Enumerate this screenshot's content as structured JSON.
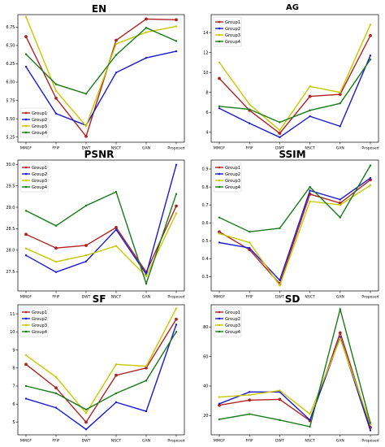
{
  "chart_data": [
    {
      "type": "line",
      "title": "EN",
      "categories": [
        "MMGF",
        "FFIF",
        "DWT",
        "NSCT",
        "GAN",
        "Proposed"
      ],
      "ylim": [
        5.18,
        6.92
      ],
      "yticks": [
        5.25,
        5.5,
        5.75,
        6.0,
        6.25,
        6.5,
        6.75
      ],
      "tick_labels": [
        "5.25",
        "5.50",
        "5.75",
        "6.00",
        "6.25",
        "6.50",
        "6.75"
      ],
      "legend_position": "lower-left",
      "series": [
        {
          "name": "Group1",
          "color": "#b22222",
          "values": [
            6.62,
            5.78,
            5.26,
            6.57,
            6.86,
            6.85
          ]
        },
        {
          "name": "Group2",
          "color": "#1a1ad6",
          "values": [
            6.21,
            5.57,
            5.41,
            6.13,
            6.33,
            6.42
          ]
        },
        {
          "name": "Group3",
          "color": "#c8c800",
          "values": [
            6.89,
            5.88,
            5.4,
            6.52,
            6.68,
            6.76
          ]
        },
        {
          "name": "Group4",
          "color": "#1a7a1a",
          "values": [
            6.38,
            5.97,
            5.84,
            6.37,
            6.74,
            6.56
          ]
        }
      ]
    },
    {
      "type": "line",
      "title": "AG",
      "categories": [
        "MMGF",
        "FFIF",
        "DWT",
        "NSCT",
        "GAN",
        "Proposed"
      ],
      "ylim": [
        3.0,
        15.8
      ],
      "yticks": [
        4,
        6,
        8,
        10,
        12,
        14
      ],
      "tick_labels": [
        "4",
        "6",
        "8",
        "10",
        "12",
        "14"
      ],
      "legend_position": "top-left",
      "series": [
        {
          "name": "Group1",
          "color": "#b22222",
          "values": [
            9.4,
            6.2,
            3.9,
            7.6,
            7.8,
            13.7
          ]
        },
        {
          "name": "Group2",
          "color": "#1a1ad6",
          "values": [
            6.4,
            4.9,
            3.5,
            5.6,
            4.6,
            11.7
          ]
        },
        {
          "name": "Group3",
          "color": "#c8c800",
          "values": [
            11.0,
            6.8,
            4.2,
            8.6,
            8.0,
            14.8
          ]
        },
        {
          "name": "Group4",
          "color": "#1a7a1a",
          "values": [
            6.6,
            6.3,
            5.0,
            6.2,
            6.9,
            11.3
          ]
        }
      ]
    },
    {
      "type": "line",
      "title": "PSNR",
      "categories": [
        "MMGF",
        "FFIF",
        "DWT",
        "NSCT",
        "GAN",
        "Proposed"
      ],
      "ylim": [
        27.05,
        30.1
      ],
      "yticks": [
        27.5,
        28.0,
        28.5,
        29.0,
        29.5,
        30.0
      ],
      "tick_labels": [
        "27.5",
        "28.0",
        "28.5",
        "29.0",
        "29.5",
        "30.0"
      ],
      "legend_position": "top-left",
      "series": [
        {
          "name": "Group1",
          "color": "#b22222",
          "values": [
            28.37,
            28.05,
            28.11,
            28.53,
            27.49,
            29.03
          ]
        },
        {
          "name": "Group2",
          "color": "#1a1ad6",
          "values": [
            27.88,
            27.49,
            27.74,
            28.48,
            27.44,
            29.99
          ]
        },
        {
          "name": "Group3",
          "color": "#c8c800",
          "values": [
            28.04,
            27.73,
            27.88,
            28.1,
            27.39,
            28.86
          ]
        },
        {
          "name": "Group4",
          "color": "#1a7a1a",
          "values": [
            28.92,
            28.57,
            29.04,
            29.36,
            27.22,
            29.31
          ]
        }
      ]
    },
    {
      "type": "line",
      "title": "SSIM",
      "categories": [
        "MMGF",
        "FFIF",
        "DWT",
        "NSCT",
        "GAN",
        "Proposed"
      ],
      "ylim": [
        0.22,
        0.95
      ],
      "yticks": [
        0.3,
        0.4,
        0.5,
        0.6,
        0.7,
        0.8,
        0.9
      ],
      "tick_labels": [
        "0.3",
        "0.4",
        "0.5",
        "0.6",
        "0.7",
        "0.8",
        "0.9"
      ],
      "legend_position": "top-left",
      "series": [
        {
          "name": "Group1",
          "color": "#b22222",
          "values": [
            0.55,
            0.45,
            0.26,
            0.76,
            0.71,
            0.84
          ]
        },
        {
          "name": "Group2",
          "color": "#1a1ad6",
          "values": [
            0.49,
            0.46,
            0.28,
            0.78,
            0.73,
            0.85
          ]
        },
        {
          "name": "Group3",
          "color": "#c8c800",
          "values": [
            0.54,
            0.49,
            0.25,
            0.72,
            0.7,
            0.81
          ]
        },
        {
          "name": "Group4",
          "color": "#1a7a1a",
          "values": [
            0.63,
            0.55,
            0.57,
            0.8,
            0.63,
            0.92
          ]
        }
      ]
    },
    {
      "type": "line",
      "title": "SF",
      "categories": [
        "MMGF",
        "FFIF",
        "DWT",
        "NSCT",
        "GAN",
        "Proposed"
      ],
      "ylim": [
        4.3,
        11.5
      ],
      "yticks": [
        5,
        6,
        7,
        8,
        9,
        10,
        11
      ],
      "tick_labels": [
        "5",
        "6",
        "7",
        "8",
        "9",
        "10",
        "11"
      ],
      "legend_position": "top-left",
      "series": [
        {
          "name": "Group1",
          "color": "#b22222",
          "values": [
            8.2,
            6.9,
            5.0,
            7.6,
            8.0,
            10.7
          ]
        },
        {
          "name": "Group2",
          "color": "#1a1ad6",
          "values": [
            6.3,
            5.8,
            4.6,
            6.1,
            5.6,
            10.4
          ]
        },
        {
          "name": "Group3",
          "color": "#c8c800",
          "values": [
            8.7,
            7.5,
            5.5,
            8.2,
            8.1,
            11.3
          ]
        },
        {
          "name": "Group4",
          "color": "#1a7a1a",
          "values": [
            7.0,
            6.6,
            5.7,
            6.6,
            7.3,
            10.0
          ]
        }
      ]
    },
    {
      "type": "line",
      "title": "SD",
      "categories": [
        "MMGF",
        "FFIF",
        "DWT",
        "NSCT",
        "GAN",
        "Proposed"
      ],
      "ylim": [
        7,
        95
      ],
      "yticks": [
        20,
        40,
        60,
        80
      ],
      "tick_labels": [
        "20",
        "40",
        "60",
        "80"
      ],
      "legend_position": "top-left",
      "series": [
        {
          "name": "Group1",
          "color": "#b22222",
          "values": [
            27,
            30.5,
            31,
            16.5,
            76,
            12
          ]
        },
        {
          "name": "Group2",
          "color": "#1a1ad6",
          "values": [
            28,
            36,
            36,
            17,
            73,
            10
          ]
        },
        {
          "name": "Group3",
          "color": "#c8c800",
          "values": [
            32.5,
            34,
            37,
            21,
            72,
            14
          ]
        },
        {
          "name": "Group4",
          "color": "#1a7a1a",
          "values": [
            17.5,
            21,
            17,
            12.5,
            92,
            15
          ]
        }
      ]
    }
  ]
}
